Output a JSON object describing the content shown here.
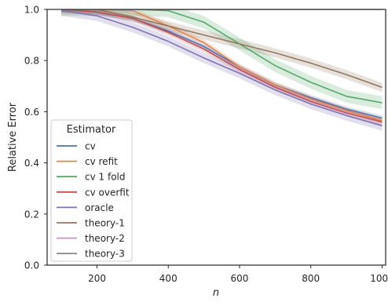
{
  "chart_data": {
    "type": "line",
    "xlabel": "n",
    "ylabel": "Relative Error",
    "xlim": [
      60,
      1010
    ],
    "ylim": [
      0.0,
      1.0
    ],
    "xticks": [
      200,
      400,
      600,
      800,
      1000
    ],
    "yticks": [
      0.0,
      0.2,
      0.4,
      0.6,
      0.8,
      1.0
    ],
    "xtick_labels": [
      "200",
      "400",
      "600",
      "800",
      "1000"
    ],
    "ytick_labels": [
      "0.0",
      "0.2",
      "0.4",
      "0.6",
      "0.8",
      "1.0"
    ],
    "grid": false,
    "legend": {
      "title": "Estimator",
      "placement": "lower-left"
    },
    "x": [
      100,
      200,
      300,
      400,
      500,
      600,
      700,
      800,
      900,
      1000
    ],
    "series": [
      {
        "name": "cv",
        "color": "#4c72b0",
        "values": [
          1.0,
          0.99,
          0.965,
          0.915,
          0.855,
          0.775,
          0.705,
          0.655,
          0.61,
          0.575
        ],
        "band": 0.01
      },
      {
        "name": "cv refit",
        "color": "#dd8452",
        "values": [
          1.0,
          1.0,
          0.995,
          0.935,
          0.87,
          0.775,
          0.705,
          0.65,
          0.605,
          0.565
        ],
        "band": 0.012
      },
      {
        "name": "cv 1 fold",
        "color": "#55a868",
        "values": [
          1.0,
          1.0,
          1.0,
          0.995,
          0.95,
          0.865,
          0.78,
          0.715,
          0.66,
          0.635
        ],
        "band": 0.025
      },
      {
        "name": "cv overfit",
        "color": "#c44e52",
        "values": [
          1.0,
          0.99,
          0.965,
          0.91,
          0.845,
          0.765,
          0.695,
          0.64,
          0.595,
          0.56
        ],
        "band": 0.012
      },
      {
        "name": "oracle",
        "color": "#8172b3",
        "values": [
          0.995,
          0.975,
          0.93,
          0.875,
          0.81,
          0.75,
          0.685,
          0.63,
          0.585,
          0.545
        ],
        "band": 0.02
      },
      {
        "name": "theory-1",
        "color": "#937860",
        "values": [
          1.0,
          1.0,
          0.97,
          0.935,
          0.9,
          0.865,
          0.83,
          0.79,
          0.745,
          0.695
        ],
        "band": 0.018
      },
      {
        "name": "theory-2",
        "color": "#da8bc3",
        "values": [
          1.0,
          1.0,
          1.0,
          1.0,
          1.0,
          1.0,
          1.0,
          1.0,
          1.0,
          1.0
        ],
        "band": 0.0
      },
      {
        "name": "theory-3",
        "color": "#8c8c8c",
        "values": [
          1.0,
          1.0,
          1.0,
          1.0,
          1.0,
          1.0,
          1.0,
          1.0,
          1.0,
          1.0
        ],
        "band": 0.0
      }
    ]
  }
}
